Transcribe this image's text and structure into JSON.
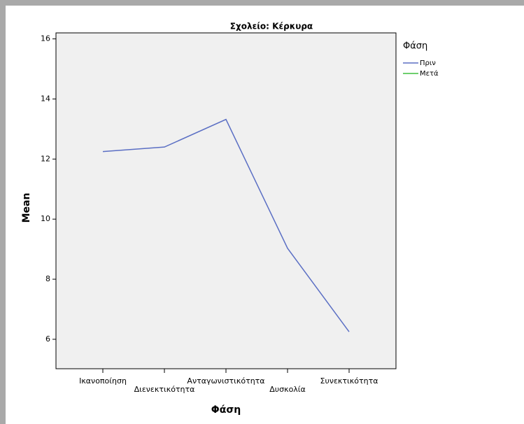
{
  "chart_data": {
    "type": "line",
    "title": "Σχολείο: Κέρκυρα",
    "x_label": "Φάση",
    "y_label": "Mean",
    "categories": [
      "Ικανοποίηση",
      "Διενεκτικότητα",
      "Ανταγωνιστικότητα",
      "Δυσκολία",
      "Συνεκτικότητα"
    ],
    "series": [
      {
        "name": "Πριν",
        "color": "#5b6fc4",
        "values": [
          12.25,
          12.4,
          13.32,
          9.03,
          6.25
        ]
      },
      {
        "name": "Μετά",
        "color": "#3fbf3f",
        "values": [
          null,
          null,
          null,
          null,
          null
        ]
      }
    ],
    "legend_title": "Φάση",
    "ylim": [
      5.02,
      16.2
    ],
    "yticks": [
      6,
      8,
      10,
      12,
      14,
      16
    ]
  }
}
